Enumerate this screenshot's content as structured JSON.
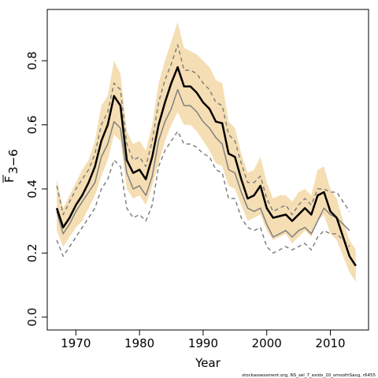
{
  "chart_data": {
    "type": "line",
    "xlabel": "Year",
    "ylabel_base": "F",
    "ylabel_sub": "3−6",
    "footnote": "stockassessment.org, NS_sel_7_exidx_20_smoothSavg, r6455",
    "xlim": [
      1965.5,
      2016.0
    ],
    "ylim": [
      -0.04,
      0.96
    ],
    "xticks": [
      1970,
      1980,
      1990,
      2000,
      2010
    ],
    "yticks": [
      0.0,
      0.2,
      0.4,
      0.6,
      0.8
    ],
    "ytick_labels": [
      "0.0",
      "0.2",
      "0.4",
      "0.6",
      "0.8"
    ],
    "grid": false,
    "colors": {
      "band": "#f5deb3",
      "estimate": "#000000",
      "other": "#808080"
    },
    "x": [
      1967,
      1968,
      1969,
      1970,
      1971,
      1972,
      1973,
      1974,
      1975,
      1976,
      1977,
      1978,
      1979,
      1980,
      1981,
      1982,
      1983,
      1984,
      1985,
      1986,
      1987,
      1988,
      1989,
      1990,
      1991,
      1992,
      1993,
      1994,
      1995,
      1996,
      1997,
      1998,
      1999,
      2000,
      2001,
      2002,
      2003,
      2004,
      2005,
      2006,
      2007,
      2008,
      2009,
      2010,
      2011,
      2012,
      2013,
      2014
    ],
    "series": [
      {
        "role": "estimate",
        "values": [
          0.34,
          0.28,
          0.31,
          0.35,
          0.38,
          0.42,
          0.47,
          0.55,
          0.6,
          0.69,
          0.66,
          0.49,
          0.45,
          0.46,
          0.43,
          0.5,
          0.6,
          0.67,
          0.73,
          0.78,
          0.72,
          0.72,
          0.7,
          0.67,
          0.65,
          0.61,
          0.605,
          0.51,
          0.5,
          0.43,
          0.37,
          0.38,
          0.41,
          0.34,
          0.31,
          0.315,
          0.32,
          0.3,
          0.32,
          0.34,
          0.32,
          0.38,
          0.39,
          0.33,
          0.31,
          0.25,
          0.19,
          0.16
        ]
      },
      {
        "role": "band_upper",
        "values": [
          0.43,
          0.34,
          0.38,
          0.42,
          0.46,
          0.49,
          0.55,
          0.66,
          0.69,
          0.8,
          0.76,
          0.58,
          0.54,
          0.55,
          0.52,
          0.6,
          0.73,
          0.8,
          0.86,
          0.92,
          0.84,
          0.83,
          0.82,
          0.8,
          0.78,
          0.74,
          0.73,
          0.61,
          0.59,
          0.51,
          0.45,
          0.46,
          0.5,
          0.42,
          0.37,
          0.38,
          0.38,
          0.36,
          0.39,
          0.4,
          0.38,
          0.46,
          0.47,
          0.4,
          0.37,
          0.3,
          0.24,
          0.21
        ]
      },
      {
        "role": "band_lower",
        "values": [
          0.27,
          0.22,
          0.25,
          0.28,
          0.3,
          0.34,
          0.38,
          0.44,
          0.49,
          0.57,
          0.55,
          0.4,
          0.37,
          0.38,
          0.35,
          0.41,
          0.48,
          0.55,
          0.6,
          0.64,
          0.6,
          0.6,
          0.58,
          0.55,
          0.52,
          0.48,
          0.47,
          0.41,
          0.4,
          0.35,
          0.3,
          0.31,
          0.32,
          0.27,
          0.24,
          0.25,
          0.26,
          0.23,
          0.25,
          0.27,
          0.25,
          0.3,
          0.32,
          0.26,
          0.24,
          0.19,
          0.14,
          0.11
        ]
      },
      {
        "role": "other",
        "values": [
          0.33,
          0.26,
          0.29,
          0.33,
          0.36,
          0.39,
          0.42,
          0.5,
          0.54,
          0.61,
          0.59,
          0.45,
          0.4,
          0.41,
          0.38,
          0.44,
          0.55,
          0.61,
          0.65,
          0.71,
          0.66,
          0.66,
          0.64,
          0.61,
          0.59,
          0.56,
          0.54,
          0.46,
          0.45,
          0.39,
          0.34,
          0.33,
          0.34,
          0.29,
          0.25,
          0.26,
          0.27,
          0.25,
          0.27,
          0.28,
          0.26,
          0.3,
          0.34,
          0.32,
          0.31,
          0.29,
          0.27,
          null
        ]
      },
      {
        "role": "other_upper",
        "values": [
          0.41,
          0.32,
          0.36,
          0.4,
          0.43,
          0.46,
          0.51,
          0.6,
          0.64,
          0.73,
          0.71,
          0.54,
          0.49,
          0.5,
          0.47,
          0.55,
          0.67,
          0.74,
          0.79,
          0.85,
          0.77,
          0.77,
          0.76,
          0.73,
          0.71,
          0.67,
          0.66,
          0.57,
          0.55,
          0.48,
          0.42,
          0.42,
          0.44,
          0.37,
          0.33,
          0.34,
          0.35,
          0.32,
          0.35,
          0.37,
          0.35,
          0.4,
          0.4,
          0.39,
          0.39,
          0.36,
          0.33,
          null
        ]
      },
      {
        "role": "other_lower",
        "values": [
          0.24,
          0.19,
          0.22,
          0.25,
          0.28,
          0.31,
          0.34,
          0.4,
          0.43,
          0.49,
          0.47,
          0.34,
          0.31,
          0.32,
          0.3,
          0.35,
          0.47,
          0.52,
          0.55,
          0.58,
          0.54,
          0.54,
          0.53,
          0.51,
          0.5,
          0.46,
          0.45,
          0.37,
          0.37,
          0.31,
          0.28,
          0.27,
          0.28,
          0.22,
          0.2,
          0.21,
          0.22,
          0.21,
          0.22,
          0.23,
          0.21,
          0.25,
          0.27,
          0.26,
          0.26,
          0.24,
          0.22,
          null
        ]
      }
    ]
  }
}
